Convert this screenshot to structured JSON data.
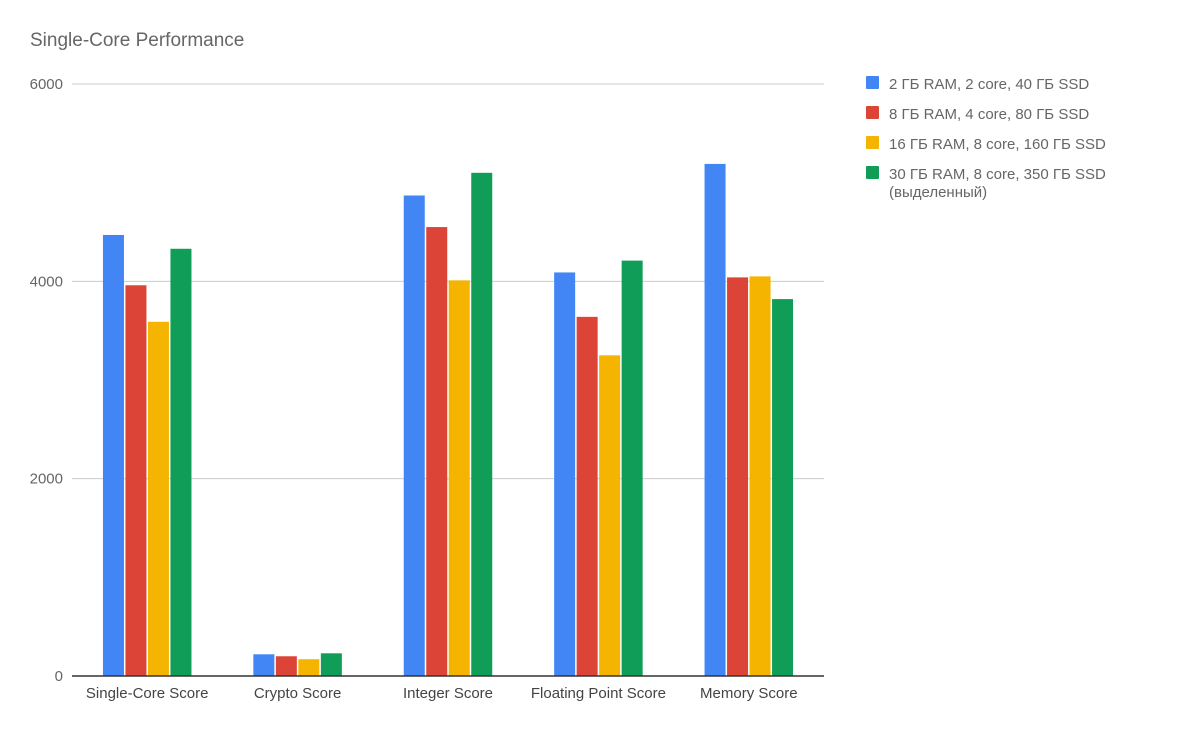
{
  "chart_data": {
    "type": "bar",
    "title": "Single-Core Performance",
    "xlabel": "",
    "ylabel": "",
    "categories": [
      "Single-Core Score",
      "Crypto Score",
      "Integer Score",
      "Floating Point Score",
      "Memory Score"
    ],
    "ylim": [
      0,
      6000
    ],
    "yticks": [
      0,
      2000,
      4000,
      6000
    ],
    "grid": true,
    "legend_position": "right",
    "series": [
      {
        "name": "2 ГБ RAM, 2 core, 40 ГБ SSD",
        "color": "#4285F4",
        "values": [
          4470,
          220,
          4870,
          4090,
          5190
        ]
      },
      {
        "name": "8 ГБ RAM, 4 core, 80 ГБ SSD",
        "color": "#DB4437",
        "values": [
          3960,
          200,
          4550,
          3640,
          4040
        ]
      },
      {
        "name": "16 ГБ RAM, 8 core, 160 ГБ SSD",
        "color": "#F4B400",
        "values": [
          3590,
          170,
          4010,
          3250,
          4050
        ]
      },
      {
        "name": "30 ГБ RAM, 8 core, 350 ГБ SSD (выделенный)",
        "color": "#0F9D58",
        "values": [
          4330,
          230,
          5100,
          4210,
          3820
        ]
      }
    ]
  }
}
